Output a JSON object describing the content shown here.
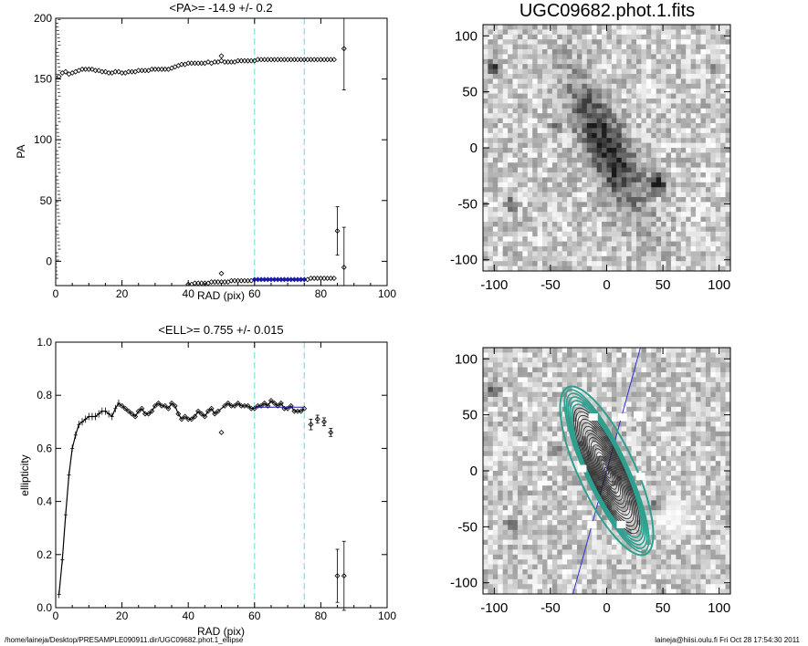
{
  "chart_data": [
    {
      "id": "pa",
      "type": "scatter",
      "title": "<PA>= -14.9 +/-   0.2",
      "xlabel": "RAD (pix)",
      "ylabel": "PA",
      "xlim": [
        0,
        100
      ],
      "ylim": [
        -20,
        200
      ],
      "xticks": [
        "0",
        "20",
        "40",
        "60",
        "80",
        "100"
      ],
      "yticks": [
        "0",
        "50",
        "100",
        "150",
        "200"
      ],
      "vlines": [
        60,
        75
      ],
      "fit": {
        "x0": 60,
        "x1": 75,
        "y": -15
      },
      "upper_branch": {
        "x": [
          1,
          2,
          3,
          4,
          5,
          6,
          7,
          8,
          9,
          10,
          11,
          12,
          13,
          14,
          15,
          16,
          17,
          18,
          19,
          20,
          21,
          22,
          23,
          24,
          25,
          26,
          27,
          28,
          29,
          30,
          31,
          32,
          33,
          34,
          35,
          36,
          37,
          38,
          39,
          40,
          41,
          42,
          43,
          44,
          45,
          46,
          47,
          48,
          49,
          50,
          51,
          52,
          53,
          54,
          55,
          56,
          57,
          58,
          59,
          60,
          61,
          62,
          63,
          64,
          65,
          66,
          67,
          68,
          69,
          70,
          71,
          72,
          73,
          74,
          75,
          76,
          77,
          78,
          79,
          80,
          81,
          82,
          83,
          84
        ],
        "y": [
          152,
          155,
          156,
          154,
          155,
          156,
          157,
          158,
          158,
          158,
          158,
          157,
          157,
          156,
          156,
          155,
          155,
          156,
          156,
          155,
          155,
          156,
          156,
          156,
          157,
          157,
          157,
          157,
          158,
          158,
          158,
          158,
          158,
          158,
          159,
          160,
          161,
          162,
          162,
          163,
          163,
          163,
          163,
          163,
          163,
          164,
          163,
          164,
          164,
          165,
          164,
          164,
          164,
          164,
          165,
          165,
          165,
          165,
          165,
          165,
          166,
          166,
          166,
          166,
          166,
          166,
          166,
          166,
          166,
          166,
          166,
          166,
          166,
          166,
          166,
          166,
          166,
          166,
          166,
          166,
          166,
          166,
          166,
          166
        ]
      },
      "lower_branch": {
        "x": [
          40,
          41,
          42,
          43,
          44,
          45,
          46,
          47,
          48,
          49,
          50,
          51,
          52,
          53,
          54,
          55,
          56,
          57,
          58,
          59,
          60,
          61,
          62,
          63,
          64,
          65,
          66,
          67,
          68,
          69,
          70,
          71,
          72,
          73,
          74,
          75,
          76,
          77,
          78,
          79,
          80,
          81,
          82,
          83,
          84
        ],
        "y": [
          -19,
          -19,
          -18,
          -18,
          -18,
          -18,
          -18,
          -17,
          -17,
          -17,
          -17,
          -17,
          -17,
          -16,
          -16,
          -16,
          -16,
          -16,
          -16,
          -16,
          -15,
          -15,
          -15,
          -15,
          -15,
          -15,
          -15,
          -15,
          -15,
          -15,
          -15,
          -15,
          -15,
          -15,
          -15,
          -15,
          -15,
          -14,
          -14,
          -14,
          -14,
          -14,
          -14,
          -14,
          -14
        ]
      },
      "outliers": [
        {
          "x": 50,
          "y": 169
        },
        {
          "x": 50,
          "y": -10
        }
      ],
      "errorbars": [
        {
          "x": 87,
          "y": 175,
          "err": 34
        },
        {
          "x": 87,
          "y": -5,
          "err": 33
        },
        {
          "x": 85,
          "y": 25,
          "err": 20
        }
      ]
    },
    {
      "id": "ell",
      "type": "scatter",
      "title": "<ELL>= 0.755 +/-  0.015",
      "xlabel": "RAD (pix)",
      "ylabel": "ellipticity",
      "xlim": [
        0,
        100
      ],
      "ylim": [
        0,
        1
      ],
      "xticks": [
        "0",
        "20",
        "40",
        "60",
        "80",
        "100"
      ],
      "yticks": [
        "0.0",
        "0.2",
        "0.4",
        "0.6",
        "0.8",
        "1.0"
      ],
      "vlines": [
        60,
        75
      ],
      "fit": {
        "x0": 60,
        "x1": 75,
        "y": 0.755
      },
      "points": {
        "x": [
          1,
          2,
          3,
          4,
          5,
          6,
          7,
          8,
          9,
          10,
          11,
          12,
          13,
          14,
          15,
          16,
          17,
          18,
          19,
          20,
          21,
          22,
          23,
          24,
          25,
          26,
          27,
          28,
          29,
          30,
          31,
          32,
          33,
          34,
          35,
          36,
          37,
          38,
          39,
          40,
          41,
          42,
          43,
          44,
          45,
          46,
          47,
          48,
          49,
          51,
          52,
          53,
          54,
          55,
          56,
          57,
          58,
          59,
          60,
          61,
          62,
          63,
          64,
          65,
          66,
          67,
          68,
          69,
          70,
          71,
          72,
          73,
          74,
          75
        ],
        "y": [
          0.05,
          0.18,
          0.35,
          0.5,
          0.6,
          0.65,
          0.69,
          0.7,
          0.71,
          0.72,
          0.72,
          0.72,
          0.73,
          0.74,
          0.74,
          0.73,
          0.72,
          0.75,
          0.77,
          0.76,
          0.75,
          0.74,
          0.73,
          0.72,
          0.74,
          0.75,
          0.73,
          0.73,
          0.74,
          0.76,
          0.77,
          0.76,
          0.76,
          0.75,
          0.77,
          0.76,
          0.73,
          0.71,
          0.72,
          0.71,
          0.71,
          0.72,
          0.74,
          0.73,
          0.72,
          0.74,
          0.75,
          0.73,
          0.74,
          0.76,
          0.77,
          0.76,
          0.76,
          0.77,
          0.76,
          0.76,
          0.76,
          0.75,
          0.75,
          0.76,
          0.76,
          0.77,
          0.76,
          0.78,
          0.77,
          0.76,
          0.77,
          0.75,
          0.75,
          0.76,
          0.74,
          0.74,
          0.74,
          0.75
        ]
      },
      "errorbars": [
        {
          "x": 50,
          "y": 0.66,
          "err": 0.0
        },
        {
          "x": 77,
          "y": 0.69,
          "err": 0.02
        },
        {
          "x": 79,
          "y": 0.71,
          "err": 0.015
        },
        {
          "x": 81,
          "y": 0.7,
          "err": 0.015
        },
        {
          "x": 83,
          "y": 0.66,
          "err": 0.015
        },
        {
          "x": 85,
          "y": 0.12,
          "err": 0.1
        },
        {
          "x": 87,
          "y": 0.12,
          "err": 0.13
        }
      ]
    },
    {
      "id": "img1",
      "type": "heatmap",
      "title": "UGC09682.phot.1.fits",
      "xlim": [
        -110,
        110
      ],
      "ylim": [
        -110,
        110
      ],
      "xticks": [
        "-100",
        "-50",
        "0",
        "50",
        "100"
      ],
      "yticks": [
        "100",
        "50",
        "0",
        "-50",
        "-100"
      ]
    },
    {
      "id": "img2",
      "type": "heatmap",
      "xlim": [
        -110,
        110
      ],
      "ylim": [
        -110,
        110
      ],
      "xticks": [
        "-100",
        "-50",
        "0",
        "50",
        "100"
      ],
      "yticks": [
        "100",
        "50",
        "0",
        "-50",
        "-100"
      ]
    }
  ],
  "footer": {
    "left": "/home/laineja/Desktop/PRESAMPLE090911.dir/UGC09682.phot.1_ellipse",
    "right": "laineja@hiisi.oulu.fi  Fri Oct 28 17:54:30 2011"
  },
  "colors": {
    "axis": "#000000",
    "vline": "#7fdfdf",
    "fit": "#1a1aa8",
    "ellipse": "#2f9f8f",
    "pa_line": "#3030d0"
  }
}
